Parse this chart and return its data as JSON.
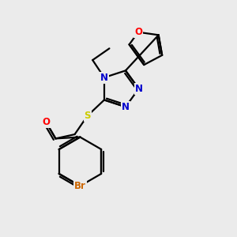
{
  "bg_color": "#ebebeb",
  "bond_color": "#000000",
  "bond_width": 1.6,
  "atom_colors": {
    "O": "#ff0000",
    "N": "#0000cc",
    "S": "#cccc00",
    "Br": "#cc6600",
    "C": "#000000"
  },
  "font_size_atoms": 8.5
}
